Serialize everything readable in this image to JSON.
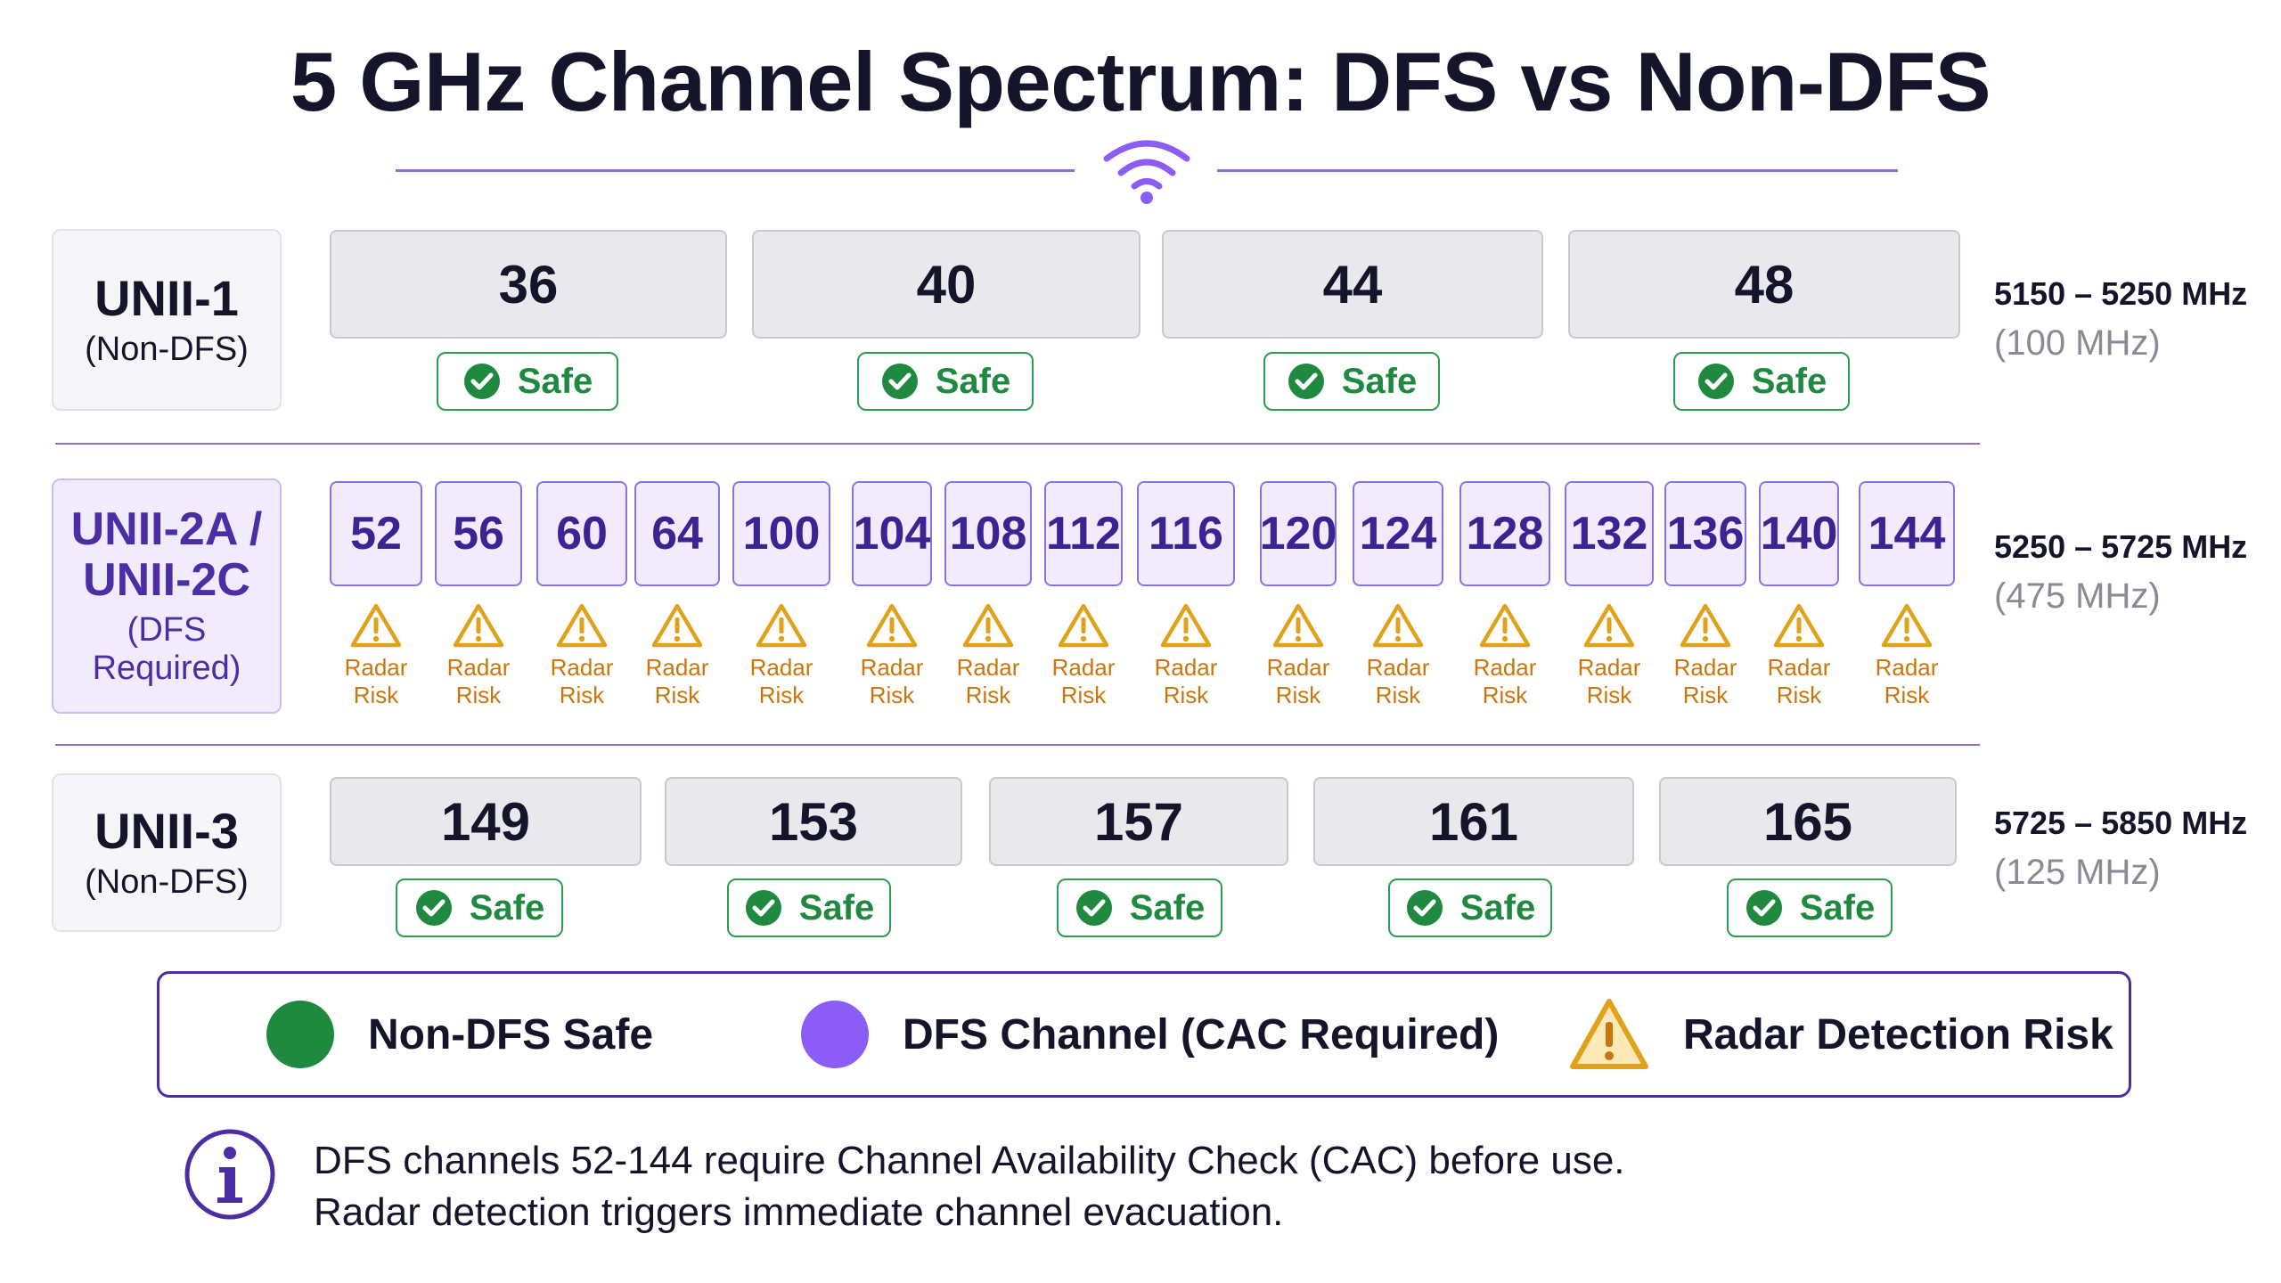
{
  "title": "5 GHz Channel Spectrum: DFS vs Non-DFS",
  "bands": [
    {
      "name": "UNII-1",
      "sub": "(Non-DFS)",
      "range": "5150 – 5250 MHz",
      "width": "(100 MHz)",
      "channels": [
        "36",
        "40",
        "44",
        "48"
      ],
      "status": "Safe"
    },
    {
      "name_line1": "UNII-2A /",
      "name_line2": "UNII-2C",
      "sub": "(DFS Required)",
      "range": "5250 – 5725 MHz",
      "width": "(475 MHz)",
      "channels": [
        "52",
        "56",
        "60",
        "64",
        "100",
        "104",
        "108",
        "112",
        "116",
        "120",
        "124",
        "128",
        "132",
        "136",
        "140",
        "144"
      ],
      "risk_line1": "Radar",
      "risk_line2": "Risk"
    },
    {
      "name": "UNII-3",
      "sub": "(Non-DFS)",
      "range": "5725 – 5850 MHz",
      "width": "(125 MHz)",
      "channels": [
        "149",
        "153",
        "157",
        "161",
        "165"
      ],
      "status": "Safe"
    }
  ],
  "legend": [
    {
      "label": "Non-DFS Safe",
      "color": "#1f8a3f",
      "icon": "green-dot-icon"
    },
    {
      "label": "DFS Channel (CAC Required)",
      "color": "#8b5cf6",
      "icon": "purple-dot-icon"
    },
    {
      "label": "Radar Detection Risk",
      "color": "#e0a21a",
      "icon": "warning-icon"
    }
  ],
  "note": {
    "icon": "info-icon",
    "line1": "DFS channels 52-144 require Channel Availability Check (CAC) before use.",
    "line2": "Radar detection triggers immediate channel evacuation."
  },
  "colors": {
    "accent": "#8b6fd6",
    "dfs": "#4b2da4",
    "safe": "#1f8a3f",
    "warning": "#c9760e"
  }
}
